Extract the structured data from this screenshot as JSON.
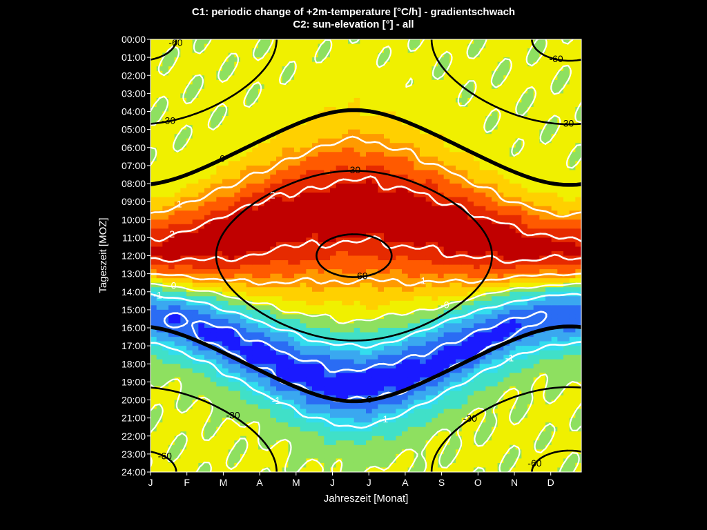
{
  "header": {
    "title_line1": "C1: periodic change of +2m-temperature [°C/h] - gradientschwach",
    "title_line2": "C2: sun-elevation [°] - all"
  },
  "chart_data": {
    "type": "heatmap",
    "title": "C1: periodic change of +2m-temperature [°C/h] - gradientschwach / C2: sun-elevation [°] - all",
    "xlabel": "Jahreszeit [Monat]",
    "ylabel": "Tageszeit [MOZ]",
    "x_ticks": [
      "J",
      "F",
      "M",
      "A",
      "M",
      "J",
      "J",
      "A",
      "S",
      "O",
      "N",
      "D"
    ],
    "x_range_months": [
      0,
      12
    ],
    "y_ticks": [
      "00:00",
      "01:00",
      "02:00",
      "03:00",
      "04:00",
      "05:00",
      "06:00",
      "07:00",
      "08:00",
      "09:00",
      "10:00",
      "11:00",
      "12:00",
      "13:00",
      "14:00",
      "15:00",
      "16:00",
      "17:00",
      "18:00",
      "19:00",
      "20:00",
      "21:00",
      "22:00",
      "23:00",
      "24:00"
    ],
    "y_range_hours": [
      0,
      24
    ],
    "y_reversed": true,
    "colormap": [
      "#1a1aff",
      "#2a6cf4",
      "#3aa8f0",
      "#33ddee",
      "#40e0c8",
      "#8ee060",
      "#f0f000",
      "#ffd000",
      "#ff9a00",
      "#ff5a00",
      "#e62a00",
      "#c00000"
    ],
    "color_range": [
      -2.5,
      2.5
    ],
    "field_model": {
      "night_value": 0.05,
      "day_peak_value": 2.3,
      "evening_min_value": -2.3
    },
    "temperature_contours": {
      "levels": [
        -2,
        -1,
        0,
        1,
        2
      ],
      "labels": [
        "-2",
        "-1",
        "-0",
        "1",
        "2"
      ],
      "color": "#ffffff"
    },
    "sun_elevation_contours": {
      "levels": [
        -60,
        -30,
        0,
        30,
        60
      ],
      "labels": [
        "-60",
        "-30",
        "0",
        "30",
        "60"
      ],
      "color": "#000000"
    },
    "grid": false,
    "legend": "none"
  }
}
